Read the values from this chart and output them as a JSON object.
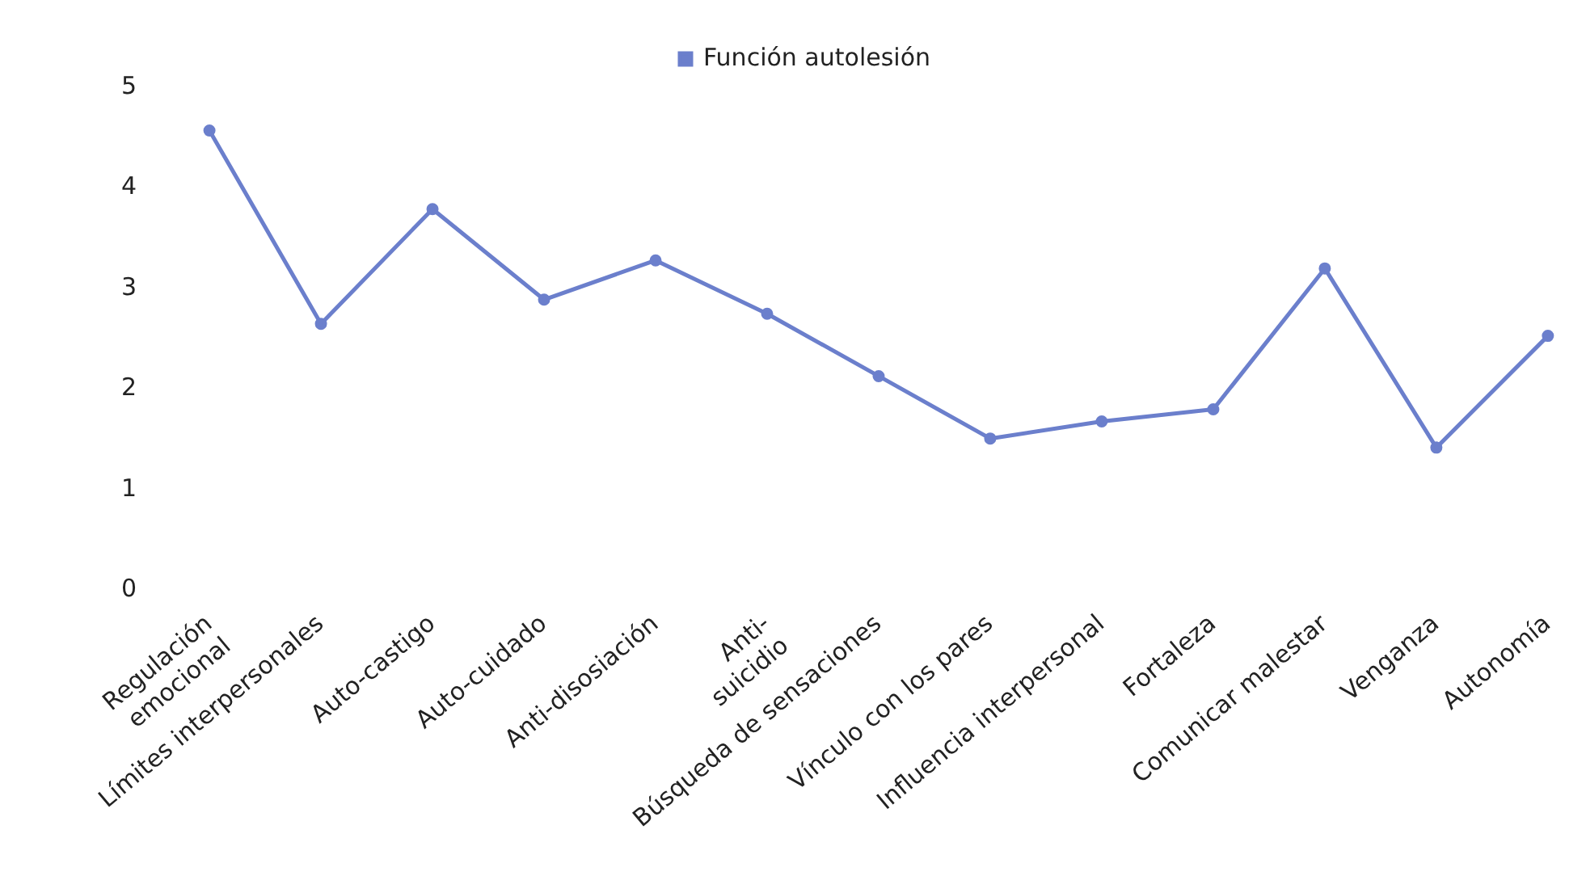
{
  "chart_data": {
    "type": "line",
    "categories": [
      "Regulación\nemocional",
      "Límites interpersonales",
      "Auto-castigo",
      "Auto-cuidado",
      "Anti-disosiación",
      "Anti-\nsuicidio",
      "Búsqueda de sensaciones",
      "Vínculo con los pares",
      "Influencia interpersonal",
      "Fortaleza",
      "Comunicar malestar",
      "Venganza",
      "Autonomía"
    ],
    "series": [
      {
        "name": "Función autolesión",
        "color": "#6b7fcc",
        "values": [
          4.57,
          2.65,
          3.79,
          2.89,
          3.28,
          2.75,
          2.13,
          1.51,
          1.68,
          1.8,
          3.2,
          1.42,
          2.53
        ]
      }
    ],
    "ylim": [
      0,
      5
    ],
    "yticks": [
      0,
      1,
      2,
      3,
      4,
      5
    ],
    "grid": false,
    "legend": "top",
    "marker": "circle",
    "line_style": "solid"
  }
}
